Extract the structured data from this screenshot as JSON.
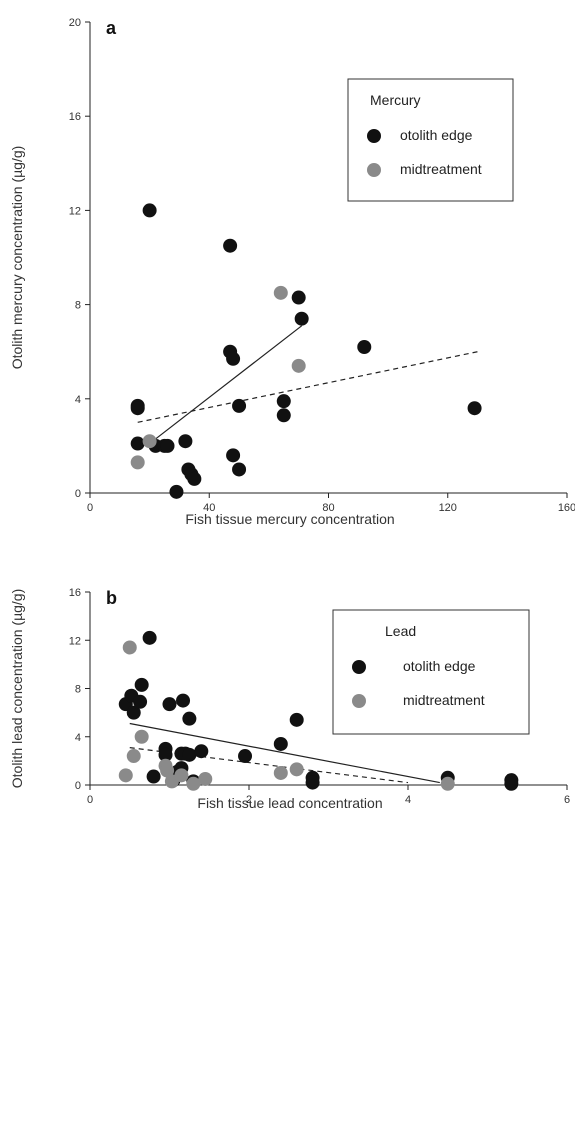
{
  "chart_data": [
    {
      "type": "scatter",
      "panel_label": "a",
      "xlabel": "Fish tissue mercury concentration",
      "ylabel": "Otolith mercury concentration (µg/g)",
      "xlim": [
        0,
        160
      ],
      "ylim": [
        0,
        20
      ],
      "xticks": [
        0,
        40,
        80,
        120,
        160
      ],
      "yticks": [
        0,
        4,
        8,
        12,
        16,
        20
      ],
      "legend": {
        "title": "Mercury",
        "placement": "top-right"
      },
      "series": [
        {
          "name": "otolith edge",
          "color": "#111111",
          "points": [
            [
              16,
              3.7
            ],
            [
              16,
              3.6
            ],
            [
              16,
              2.1
            ],
            [
              20,
              12.0
            ],
            [
              22,
              2.0
            ],
            [
              25,
              2.0
            ],
            [
              26,
              2.0
            ],
            [
              29,
              0.05
            ],
            [
              32,
              2.2
            ],
            [
              33,
              1.0
            ],
            [
              34,
              0.8
            ],
            [
              35,
              0.6
            ],
            [
              47,
              10.5
            ],
            [
              47,
              6.0
            ],
            [
              48,
              5.7
            ],
            [
              48,
              1.6
            ],
            [
              50,
              3.7
            ],
            [
              50,
              1.0
            ],
            [
              65,
              3.9
            ],
            [
              65,
              3.3
            ],
            [
              70,
              8.3
            ],
            [
              71,
              7.4
            ],
            [
              92,
              6.2
            ],
            [
              129,
              3.6
            ]
          ]
        },
        {
          "name": "midtreatment",
          "color": "#8a8a8a",
          "points": [
            [
              16,
              1.3
            ],
            [
              20,
              2.2
            ],
            [
              64,
              8.5
            ],
            [
              70,
              5.4
            ]
          ]
        }
      ],
      "fit_lines": [
        {
          "style": "solid",
          "points": [
            [
              20,
              2.1
            ],
            [
              71,
              7.1
            ]
          ]
        },
        {
          "style": "dashed",
          "points": [
            [
              16,
              3.0
            ],
            [
              130,
              6.0
            ]
          ]
        }
      ]
    },
    {
      "type": "scatter",
      "panel_label": "b",
      "xlabel": "Fish tissue lead concentration",
      "ylabel": "Otolith lead concentration (µg/g)",
      "xlim": [
        0,
        6
      ],
      "ylim": [
        0,
        16
      ],
      "xticks": [
        0,
        2,
        4,
        6
      ],
      "yticks": [
        0,
        4,
        8,
        12,
        16
      ],
      "legend": {
        "title": "Lead",
        "placement": "top-right"
      },
      "series": [
        {
          "name": "otolith edge",
          "color": "#111111",
          "points": [
            [
              0.45,
              6.7
            ],
            [
              0.52,
              7.4
            ],
            [
              0.55,
              6.0
            ],
            [
              0.63,
              6.9
            ],
            [
              0.65,
              8.3
            ],
            [
              0.75,
              12.2
            ],
            [
              0.8,
              0.7
            ],
            [
              0.95,
              3.0
            ],
            [
              0.95,
              2.5
            ],
            [
              1.0,
              6.7
            ],
            [
              1.05,
              0.4
            ],
            [
              1.1,
              1.1
            ],
            [
              1.15,
              1.4
            ],
            [
              1.15,
              2.6
            ],
            [
              1.17,
              7.0
            ],
            [
              1.2,
              2.6
            ],
            [
              1.25,
              5.5
            ],
            [
              1.25,
              2.5
            ],
            [
              1.3,
              0.3
            ],
            [
              1.4,
              2.8
            ],
            [
              1.95,
              2.4
            ],
            [
              2.4,
              3.4
            ],
            [
              2.6,
              5.4
            ],
            [
              2.8,
              0.6
            ],
            [
              2.8,
              0.2
            ],
            [
              4.5,
              0.6
            ],
            [
              5.3,
              0.4
            ],
            [
              5.3,
              0.1
            ]
          ]
        },
        {
          "name": "midtreatment",
          "color": "#8a8a8a",
          "points": [
            [
              0.45,
              0.8
            ],
            [
              0.5,
              11.4
            ],
            [
              0.55,
              2.4
            ],
            [
              0.65,
              4.0
            ],
            [
              0.95,
              1.6
            ],
            [
              0.97,
              1.2
            ],
            [
              1.03,
              0.3
            ],
            [
              1.15,
              0.8
            ],
            [
              1.3,
              0.1
            ],
            [
              1.45,
              0.5
            ],
            [
              2.4,
              1.0
            ],
            [
              2.6,
              1.3
            ],
            [
              4.5,
              0.1
            ]
          ]
        }
      ],
      "fit_lines": [
        {
          "style": "solid",
          "points": [
            [
              0.5,
              5.1
            ],
            [
              4.4,
              0.2
            ]
          ]
        },
        {
          "style": "dashed",
          "points": [
            [
              0.5,
              3.1
            ],
            [
              4.0,
              0.2
            ]
          ]
        }
      ]
    }
  ]
}
